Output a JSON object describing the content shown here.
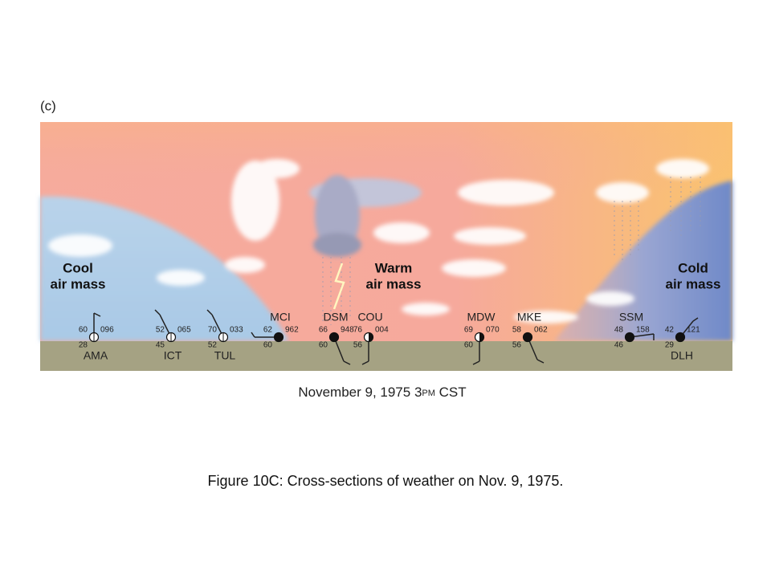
{
  "panel_label": "(c)",
  "air_masses": [
    {
      "line1": "Cool",
      "line2": "air mass"
    },
    {
      "line1": "Warm",
      "line2": "air mass"
    },
    {
      "line1": "Cold",
      "line2": "air mass"
    }
  ],
  "stations": [
    {
      "name": "AMA",
      "temp": "60",
      "pressure": "096",
      "dewpoint": "28"
    },
    {
      "name": "ICT",
      "temp": "52",
      "pressure": "065",
      "dewpoint": "45"
    },
    {
      "name": "TUL",
      "temp": "70",
      "pressure": "033",
      "dewpoint": "52"
    },
    {
      "name": "MCI",
      "temp": "62",
      "pressure": "962",
      "dewpoint": "60"
    },
    {
      "name": "DSM",
      "temp": "66",
      "pressure": "948",
      "dewpoint": "60"
    },
    {
      "name": "COU",
      "temp": "76",
      "pressure": "004",
      "dewpoint": "56"
    },
    {
      "name": "MDW",
      "temp": "69",
      "pressure": "070",
      "dewpoint": "60"
    },
    {
      "name": "MKE",
      "temp": "58",
      "pressure": "062",
      "dewpoint": "56"
    },
    {
      "name": "SSM",
      "temp": "48",
      "pressure": "158",
      "dewpoint": "46"
    },
    {
      "name": "DLH",
      "temp": "42",
      "pressure": "121",
      "dewpoint": "29"
    }
  ],
  "date_caption": {
    "main": "November 9, 1975 3",
    "small": "PM",
    "tail": " CST"
  },
  "figure_caption": "Figure 10C: Cross-sections of weather on Nov. 9, 1975."
}
